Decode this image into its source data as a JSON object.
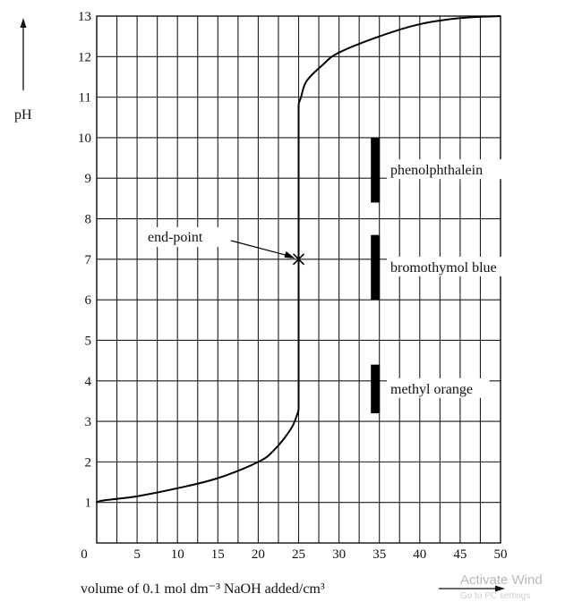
{
  "chart_data": {
    "type": "line",
    "title": "",
    "ylabel": "pH",
    "xlabel": "volume of 0.1 mol dm⁻³ NaOH added/cm³",
    "xlim": [
      0,
      50
    ],
    "ylim": [
      0,
      13
    ],
    "x_ticks": [
      "0",
      "5",
      "10",
      "15",
      "20",
      "25",
      "30",
      "35",
      "40",
      "45",
      "50"
    ],
    "y_ticks": [
      "0",
      "1",
      "2",
      "3",
      "4",
      "5",
      "6",
      "7",
      "8",
      "9",
      "10",
      "11",
      "12",
      "13"
    ],
    "grid": true,
    "series": [
      {
        "x": [
          0,
          5,
          10,
          15,
          20,
          22,
          24,
          24.7,
          25,
          25,
          25.3,
          26,
          28,
          30,
          35,
          40,
          45,
          50
        ],
        "y": [
          1.0,
          1.15,
          1.35,
          1.6,
          2.0,
          2.3,
          2.8,
          3.1,
          3.3,
          10.8,
          11.0,
          11.4,
          11.8,
          12.1,
          12.5,
          12.8,
          12.95,
          13.0
        ]
      }
    ],
    "end_point": {
      "label": "end-point",
      "x": 25,
      "y": 7
    },
    "indicators": [
      {
        "name": "phenolphthalein",
        "x": 34.5,
        "ph_range": [
          8.4,
          10.0
        ]
      },
      {
        "name": "bromothymol blue",
        "x": 34.5,
        "ph_range": [
          6.0,
          7.6
        ]
      },
      {
        "name": "methyl orange",
        "x": 34.5,
        "ph_range": [
          3.2,
          4.4
        ]
      }
    ]
  },
  "watermark": {
    "line1": "Activate Wind",
    "line2": "Go to PC settings"
  }
}
